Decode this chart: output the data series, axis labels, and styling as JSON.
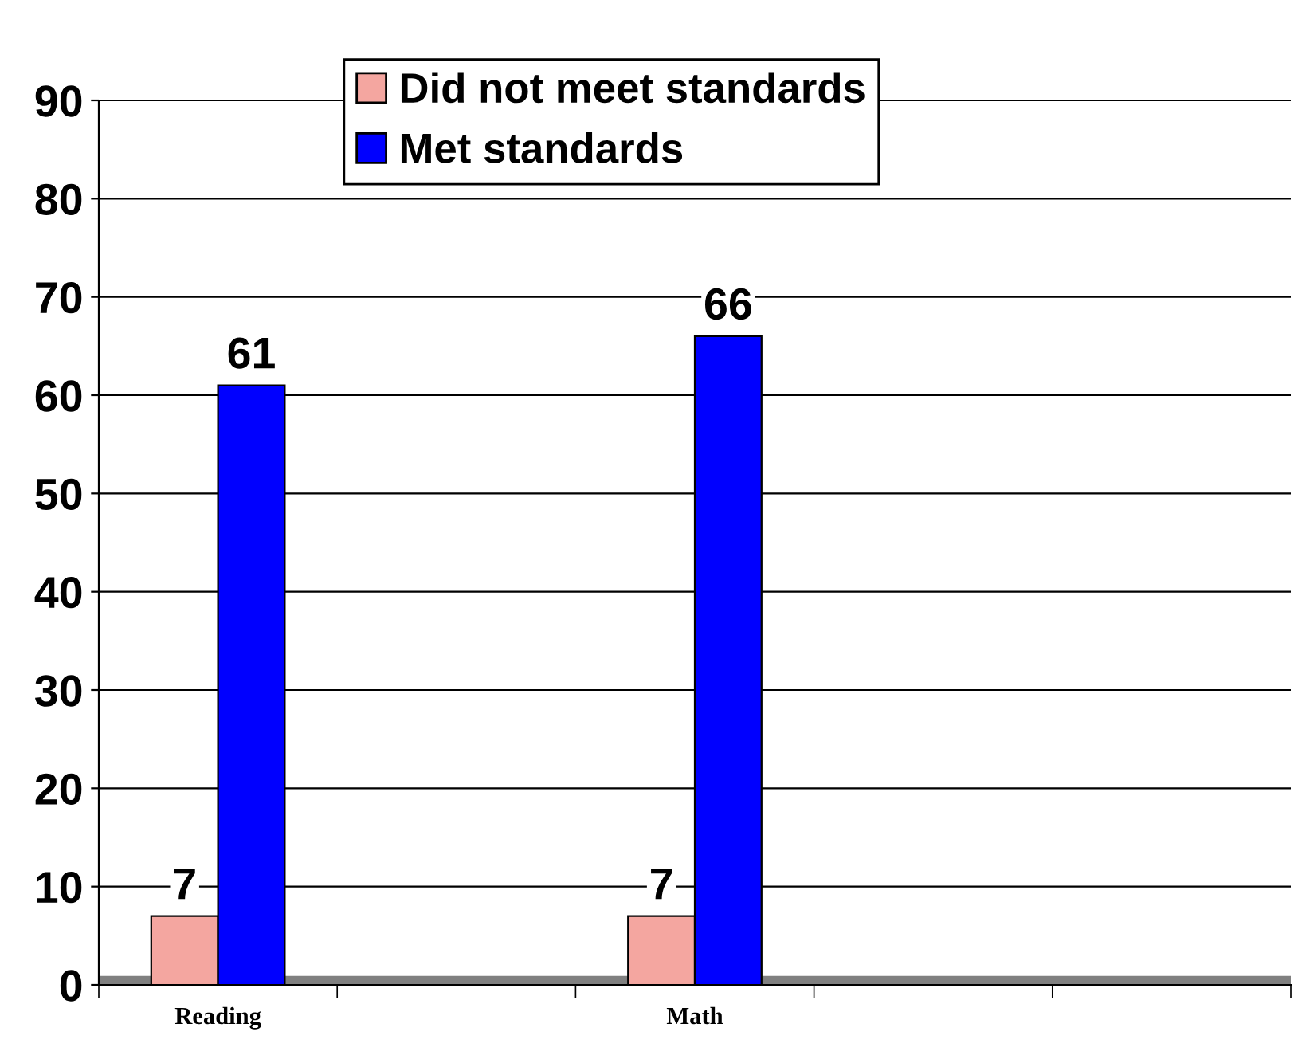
{
  "chart_data": {
    "type": "bar",
    "categories": [
      "Reading",
      null,
      "Math",
      null,
      null
    ],
    "series": [
      {
        "name": "Did not meet standards",
        "color": "#f4a6a0",
        "values": [
          7,
          null,
          7,
          null,
          null
        ]
      },
      {
        "name": "Met standards",
        "color": "#0000ff",
        "values": [
          61,
          null,
          66,
          null,
          null
        ]
      }
    ],
    "ylim": [
      0,
      90
    ],
    "yticks": [
      0,
      10,
      20,
      30,
      40,
      50,
      60,
      70,
      80,
      90
    ],
    "grid": "y",
    "legend": "top",
    "data_labels": true
  }
}
